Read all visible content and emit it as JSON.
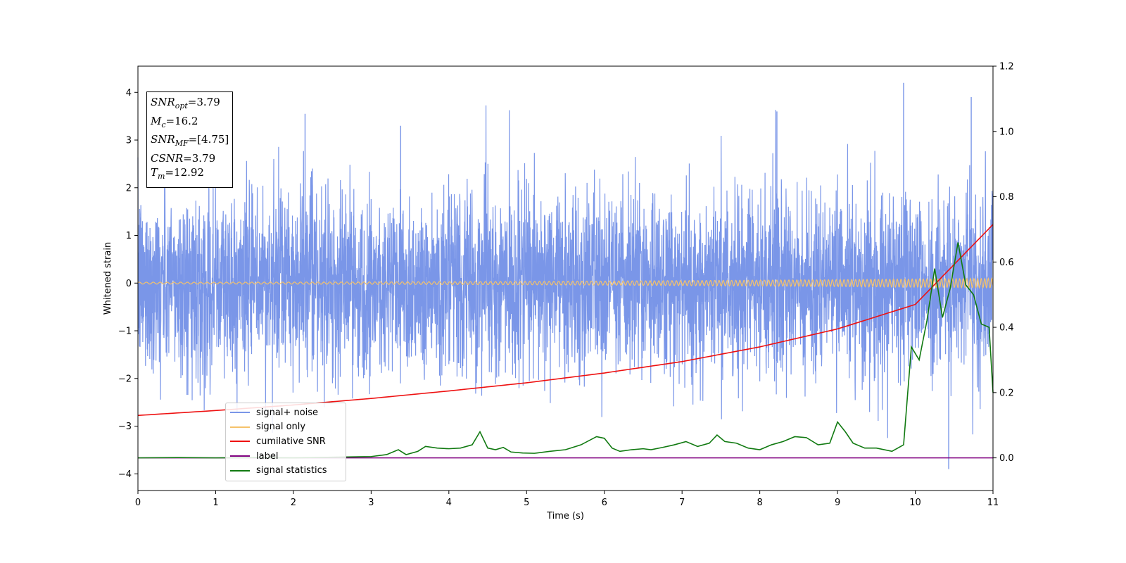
{
  "chart_data": {
    "type": "line",
    "xlabel": "Time (s)",
    "ylabel": "Whitened strain",
    "xlim": [
      0,
      11
    ],
    "ylim": [
      -4.35,
      4.55
    ],
    "y2lim": [
      -0.1,
      1.2
    ],
    "x_ticks": [
      "0",
      "1",
      "2",
      "3",
      "4",
      "5",
      "6",
      "7",
      "8",
      "9",
      "10",
      "11"
    ],
    "y_ticks": [
      "−4",
      "−3",
      "−2",
      "−1",
      "0",
      "1",
      "2",
      "3",
      "4"
    ],
    "y_tick_values": [
      -4,
      -3,
      -2,
      -1,
      0,
      1,
      2,
      3,
      4
    ],
    "y2_ticks": [
      "0.0",
      "0.2",
      "0.4",
      "0.6",
      "0.8",
      "1.0",
      "1.2"
    ],
    "y2_tick_values": [
      0.0,
      0.2,
      0.4,
      0.6,
      0.8,
      1.0,
      1.2
    ],
    "legend_placement": "lower-left",
    "grid": false,
    "annotation_box": {
      "snr_opt_sym": "SNR",
      "snr_opt_sub": "opt",
      "snr_opt_val": "=3.79",
      "mc_sym": "M",
      "mc_sub": "c",
      "mc_val": "=16.2",
      "snr_mf_sym": "SNR",
      "snr_mf_sub": "MF",
      "snr_mf_val": "=[4.75]",
      "csnr_sym": "CSNR",
      "csnr_val": "=3.79",
      "tm_sym": "T",
      "tm_sub": "m",
      "tm_val": "=12.92"
    },
    "series": [
      {
        "name": "signal+ noise",
        "color": "#7a96e8",
        "axis": "left",
        "description_of_values": "whitened noise, approx. Gaussian with sigma about 1, spikes up to 4.2 and down to -3.9",
        "amplitude_range": [
          -3.9,
          4.2
        ]
      },
      {
        "name": "signal only",
        "color": "#f5c26b",
        "axis": "left",
        "amplitude_start": 0.02,
        "amplitude_end": 0.1,
        "freq_start": 11,
        "freq_end": 22
      },
      {
        "name": "cumilative SNR",
        "color": "#ee1111",
        "axis": "right",
        "x": [
          0,
          1,
          2,
          3,
          4,
          5,
          6,
          7,
          8,
          9,
          10,
          11
        ],
        "values": [
          0.13,
          0.145,
          0.162,
          0.182,
          0.205,
          0.23,
          0.26,
          0.295,
          0.34,
          0.395,
          0.47,
          0.715
        ]
      },
      {
        "name": "label",
        "color": "#800080",
        "axis": "right",
        "x": [
          0,
          11
        ],
        "values": [
          0.0,
          0.0
        ]
      },
      {
        "name": "signal statistics",
        "color": "#117a11",
        "axis": "right",
        "x": [
          0,
          0.5,
          1,
          1.5,
          2,
          2.5,
          3,
          3.2,
          3.35,
          3.45,
          3.6,
          3.7,
          3.85,
          4.0,
          4.15,
          4.3,
          4.4,
          4.5,
          4.6,
          4.7,
          4.8,
          4.95,
          5.1,
          5.3,
          5.5,
          5.7,
          5.9,
          6.0,
          6.1,
          6.2,
          6.35,
          6.5,
          6.6,
          6.75,
          6.9,
          7.05,
          7.2,
          7.35,
          7.45,
          7.55,
          7.7,
          7.85,
          8.0,
          8.15,
          8.3,
          8.45,
          8.6,
          8.75,
          8.9,
          9.0,
          9.1,
          9.2,
          9.35,
          9.5,
          9.7,
          9.85,
          9.95,
          10.05,
          10.15,
          10.25,
          10.35,
          10.45,
          10.55,
          10.65,
          10.75,
          10.85,
          10.95,
          11.0
        ],
        "values": [
          0.0,
          0.001,
          0.0,
          0.001,
          0.0,
          0.002,
          0.004,
          0.01,
          0.025,
          0.01,
          0.02,
          0.035,
          0.03,
          0.028,
          0.03,
          0.04,
          0.08,
          0.03,
          0.025,
          0.032,
          0.018,
          0.015,
          0.014,
          0.02,
          0.025,
          0.04,
          0.065,
          0.06,
          0.03,
          0.02,
          0.025,
          0.028,
          0.025,
          0.032,
          0.04,
          0.05,
          0.035,
          0.045,
          0.07,
          0.05,
          0.045,
          0.03,
          0.025,
          0.04,
          0.05,
          0.065,
          0.062,
          0.04,
          0.045,
          0.11,
          0.08,
          0.045,
          0.03,
          0.03,
          0.02,
          0.04,
          0.34,
          0.3,
          0.42,
          0.58,
          0.43,
          0.52,
          0.66,
          0.53,
          0.5,
          0.41,
          0.4,
          0.2
        ]
      }
    ]
  }
}
